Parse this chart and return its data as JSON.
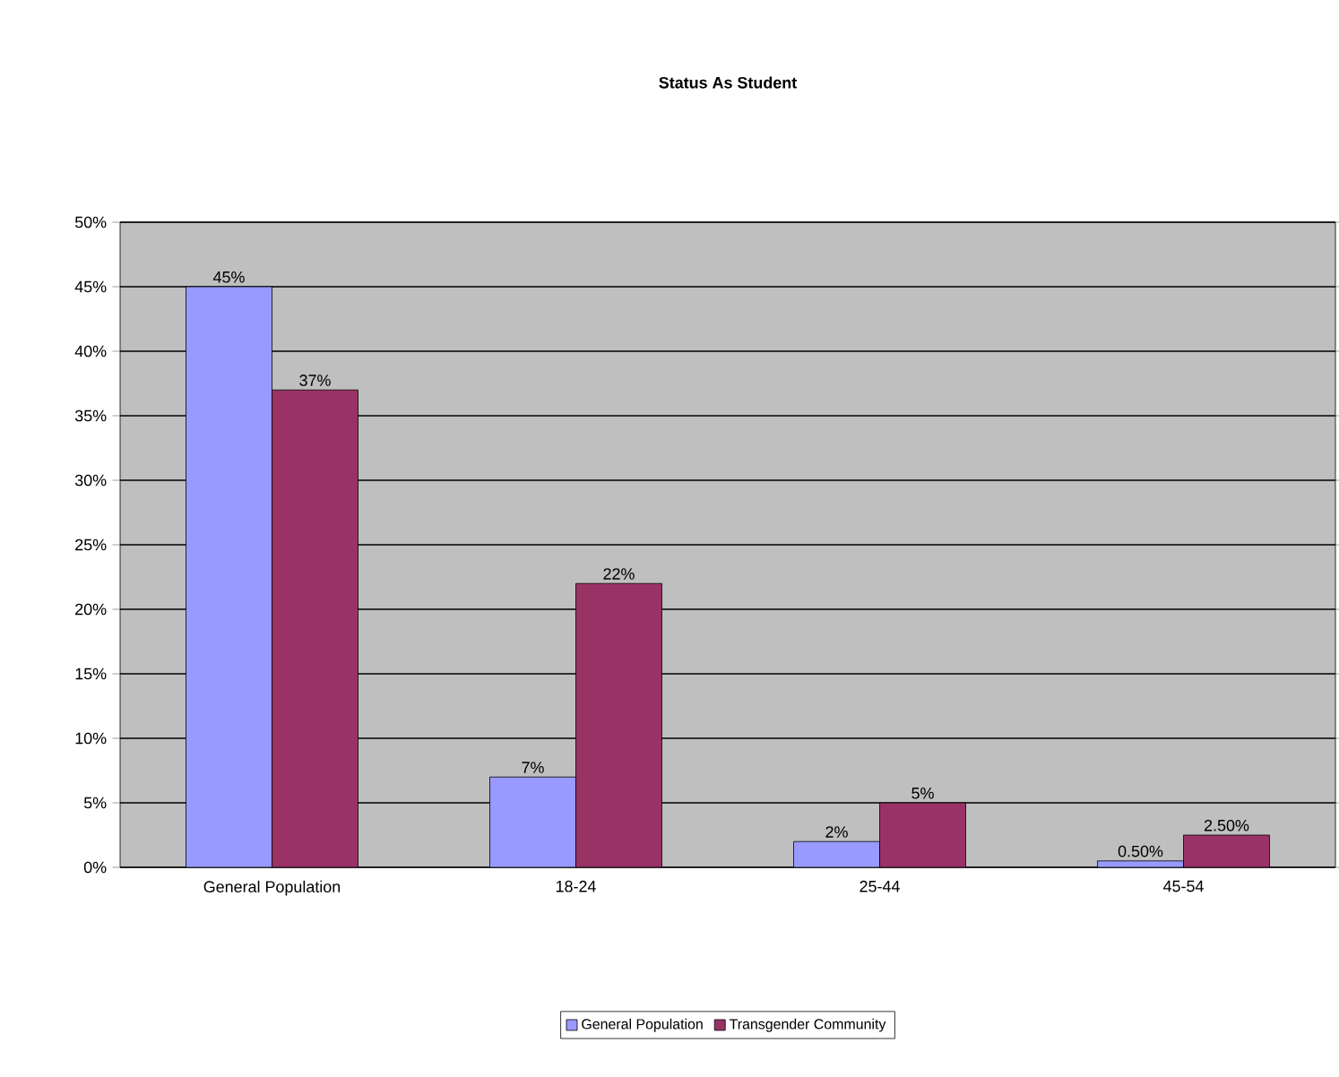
{
  "chart_data": {
    "type": "bar",
    "title": "Status As Student",
    "categories": [
      "General Population",
      "18-24",
      "25-44",
      "45-54"
    ],
    "series": [
      {
        "name": "General Population",
        "color": "#9999ff",
        "values": [
          45,
          7,
          2,
          0.5
        ],
        "value_labels": [
          "45%",
          "7%",
          "2%",
          "0.50%"
        ]
      },
      {
        "name": "Transgender Community",
        "color": "#993366",
        "values": [
          37,
          22,
          5,
          2.5
        ],
        "value_labels": [
          "37%",
          "22%",
          "5%",
          "2.50%"
        ]
      }
    ],
    "ylim": [
      0,
      50
    ],
    "yticks": [
      {
        "value": 0,
        "label": "0%"
      },
      {
        "value": 5,
        "label": "5%"
      },
      {
        "value": 10,
        "label": "10%"
      },
      {
        "value": 15,
        "label": "15%"
      },
      {
        "value": 20,
        "label": "20%"
      },
      {
        "value": 25,
        "label": "25%"
      },
      {
        "value": 30,
        "label": "30%"
      },
      {
        "value": 35,
        "label": "35%"
      },
      {
        "value": 40,
        "label": "40%"
      },
      {
        "value": 45,
        "label": "45%"
      },
      {
        "value": 50,
        "label": "50%"
      }
    ],
    "grid": "y",
    "legend": "bottom"
  }
}
